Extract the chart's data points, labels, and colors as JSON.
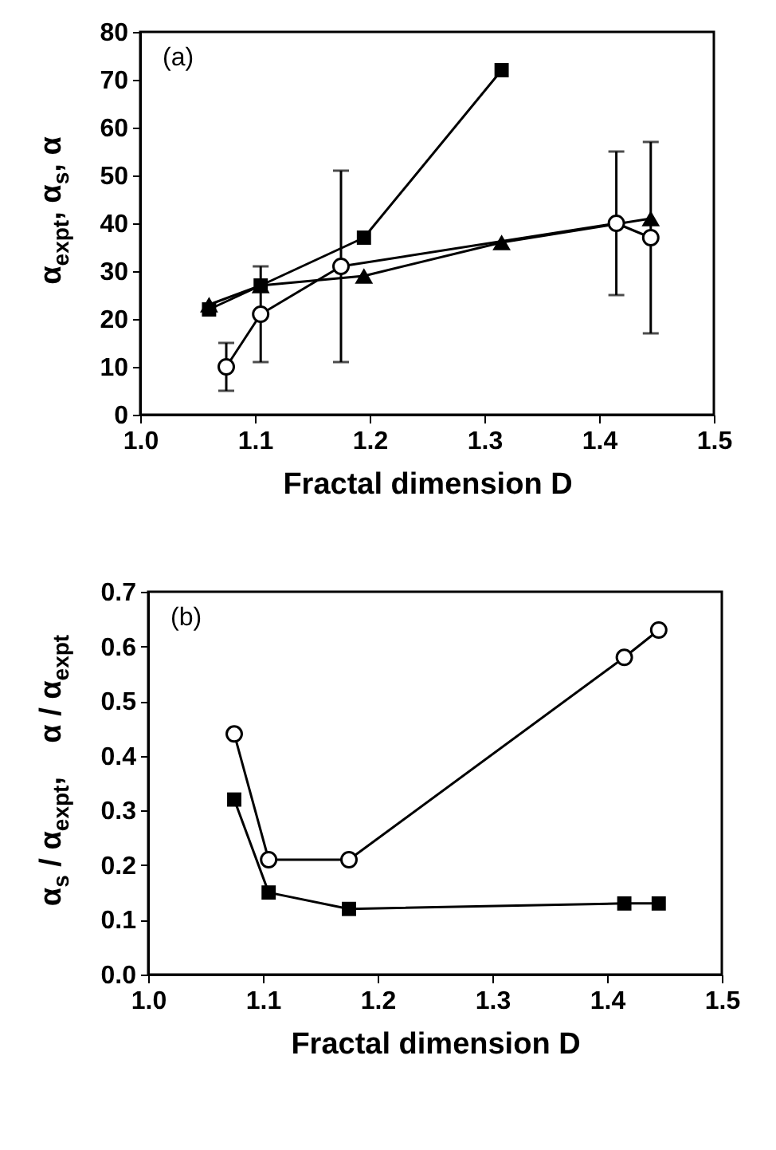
{
  "chart_data": [
    {
      "type": "line",
      "xlabel": "Fractal dimension D",
      "ylabel": "α$_{expt}$, α$_{s}$, α",
      "annotations": [
        "(a)"
      ],
      "xlim": [
        1.0,
        1.5
      ],
      "xticks": [
        {
          "value": 1.0,
          "label": "1.0"
        },
        {
          "value": 1.1,
          "label": "1.1"
        },
        {
          "value": 1.2,
          "label": "1.2"
        },
        {
          "value": 1.3,
          "label": "1.3"
        },
        {
          "value": 1.4,
          "label": "1.4"
        },
        {
          "value": 1.5,
          "label": "1.5"
        }
      ],
      "ylim": [
        0,
        80
      ],
      "yticks": [
        0,
        10,
        20,
        30,
        40,
        50,
        60,
        70,
        80
      ],
      "grid": false,
      "series": [
        {
          "color": "#000000",
          "marker": "triangle",
          "x": [
            1.06,
            1.105,
            1.195,
            1.315,
            1.445
          ],
          "values": [
            23,
            27,
            29,
            36,
            41
          ]
        },
        {
          "color": "#000000",
          "marker": "square",
          "x": [
            1.06,
            1.105,
            1.195,
            1.315
          ],
          "values": [
            22,
            27,
            37,
            72
          ]
        },
        {
          "color": "#000000",
          "marker": "circle",
          "x": [
            1.075,
            1.105,
            1.175,
            1.415,
            1.445
          ],
          "values": [
            10,
            21,
            31,
            40,
            37
          ],
          "errors": [
            [
              5,
              15
            ],
            [
              11,
              31
            ],
            [
              11,
              51
            ],
            [
              25,
              55
            ],
            [
              17,
              57
            ]
          ]
        }
      ]
    },
    {
      "type": "line",
      "xlabel": "Fractal dimension D",
      "ylabel": "α$_{s}$ / α$_{expt}$,    α / α$_{expt}$",
      "annotations": [
        "(b)"
      ],
      "xlim": [
        1.0,
        1.5
      ],
      "xticks": [
        {
          "value": 1.0,
          "label": "1.0"
        },
        {
          "value": 1.1,
          "label": "1.1"
        },
        {
          "value": 1.2,
          "label": "1.2"
        },
        {
          "value": 1.3,
          "label": "1.3"
        },
        {
          "value": 1.4,
          "label": "1.4"
        },
        {
          "value": 1.5,
          "label": "1.5"
        }
      ],
      "ylim": [
        0.0,
        0.7
      ],
      "yticks": [
        {
          "value": 0,
          "label": "0.0"
        },
        0.1,
        0.2,
        0.3,
        0.4,
        0.5,
        0.6,
        0.7
      ],
      "grid": false,
      "series": [
        {
          "color": "#000000",
          "marker": "circle",
          "x": [
            1.075,
            1.105,
            1.175,
            1.415,
            1.445
          ],
          "values": [
            0.44,
            0.21,
            0.21,
            0.58,
            0.63
          ]
        },
        {
          "color": "#000000",
          "marker": "square",
          "x": [
            1.075,
            1.105,
            1.175,
            1.415,
            1.445
          ],
          "values": [
            0.32,
            0.15,
            0.12,
            0.13,
            0.13
          ]
        }
      ]
    }
  ]
}
